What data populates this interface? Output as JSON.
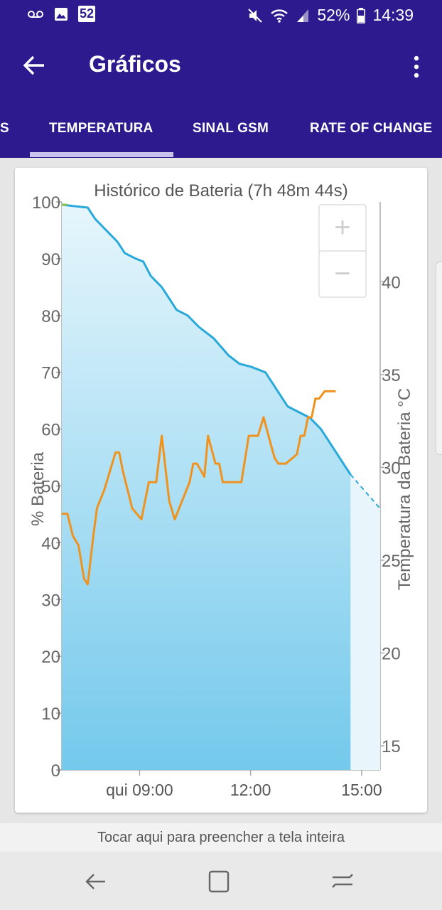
{
  "status_bar": {
    "voicemail_icon": "voicemail-icon",
    "gallery_icon": "image-icon",
    "badge": "52",
    "battery_percent": "52%",
    "time": "14:39"
  },
  "app_bar": {
    "title": "Gráficos"
  },
  "tabs": [
    {
      "label": "S",
      "active": false
    },
    {
      "label": "TEMPERATURA",
      "active": true
    },
    {
      "label": "SINAL GSM",
      "active": false
    },
    {
      "label": "RATE OF CHANGE",
      "active": false
    }
  ],
  "chart_data": {
    "type": "line",
    "title": "Histórico de Bateria (7h 48m 44s)",
    "x_ticks": [
      "qui 09:00",
      "12:00",
      "15:00"
    ],
    "y_left": {
      "label": "% Bateria",
      "ticks": [
        "0",
        "10",
        "20",
        "30",
        "40",
        "50",
        "60",
        "70",
        "80",
        "90",
        "100"
      ],
      "range": [
        0,
        100
      ]
    },
    "y_right": {
      "label": "Temperatura da Bateria °C",
      "ticks": [
        "15",
        "20",
        "25",
        "30",
        "35",
        "40"
      ],
      "range": [
        13.7,
        44.3
      ]
    },
    "colors": {
      "battery": "#29a9da",
      "temperature": "#f0921e",
      "fill_top": "#e6f6fc",
      "fill_bottom": "#74c9ec"
    },
    "series": [
      {
        "name": "% Bateria",
        "axis": "left",
        "x": [
          6.9,
          7.6,
          7.8,
          8.1,
          8.4,
          8.6,
          8.9,
          9.1,
          9.3,
          9.6,
          10.0,
          10.3,
          10.6,
          11.0,
          11.4,
          11.7,
          12.0,
          12.4,
          12.7,
          13.0,
          13.3,
          13.6,
          13.9,
          14.3,
          14.7
        ],
        "values": [
          99.5,
          99,
          97,
          95,
          93,
          91,
          90,
          89.5,
          87,
          85,
          81,
          80,
          78,
          76,
          73,
          71.5,
          71,
          70,
          67,
          64,
          63,
          62,
          60,
          56,
          52
        ],
        "projection": {
          "x": [
            14.7,
            15.5
          ],
          "values": [
            52,
            46
          ]
        }
      },
      {
        "name": "Temperatura da Bateria °C",
        "axis": "right",
        "x": [
          6.9,
          7.05,
          7.2,
          7.35,
          7.5,
          7.6,
          7.75,
          7.85,
          8.05,
          8.35,
          8.45,
          8.55,
          8.8,
          9.05,
          9.25,
          9.45,
          9.6,
          9.8,
          9.95,
          10.15,
          10.35,
          10.45,
          10.55,
          10.75,
          10.85,
          11.05,
          11.15,
          11.25,
          11.45,
          11.75,
          11.95,
          12.2,
          12.35,
          12.55,
          12.65,
          12.75,
          12.95,
          13.25,
          13.35,
          13.45,
          13.55,
          13.65,
          13.75,
          13.85,
          14.0,
          14.1,
          14.2,
          14.3
        ],
        "values": [
          27.5,
          27.5,
          26.3,
          25.8,
          24.0,
          23.7,
          26.3,
          27.8,
          28.8,
          30.8,
          30.8,
          29.8,
          27.8,
          27.2,
          29.2,
          29.2,
          31.7,
          28.2,
          27.2,
          28.2,
          29.2,
          30.2,
          30.2,
          29.5,
          31.7,
          30.2,
          30.2,
          29.2,
          29.2,
          29.2,
          31.7,
          31.7,
          32.7,
          31.2,
          30.5,
          30.2,
          30.2,
          30.7,
          31.7,
          31.7,
          32.7,
          32.7,
          33.7,
          33.7,
          34.1,
          34.1,
          34.1,
          34.1
        ]
      }
    ],
    "zoom_controls": [
      "+",
      "−"
    ]
  },
  "footer": {
    "fill_hint": "Tocar aqui para preencher a tela inteira"
  },
  "nav": {
    "back_icon": "back-nav-icon",
    "home_icon": "home-nav-icon",
    "recents_icon": "recents-nav-icon"
  }
}
